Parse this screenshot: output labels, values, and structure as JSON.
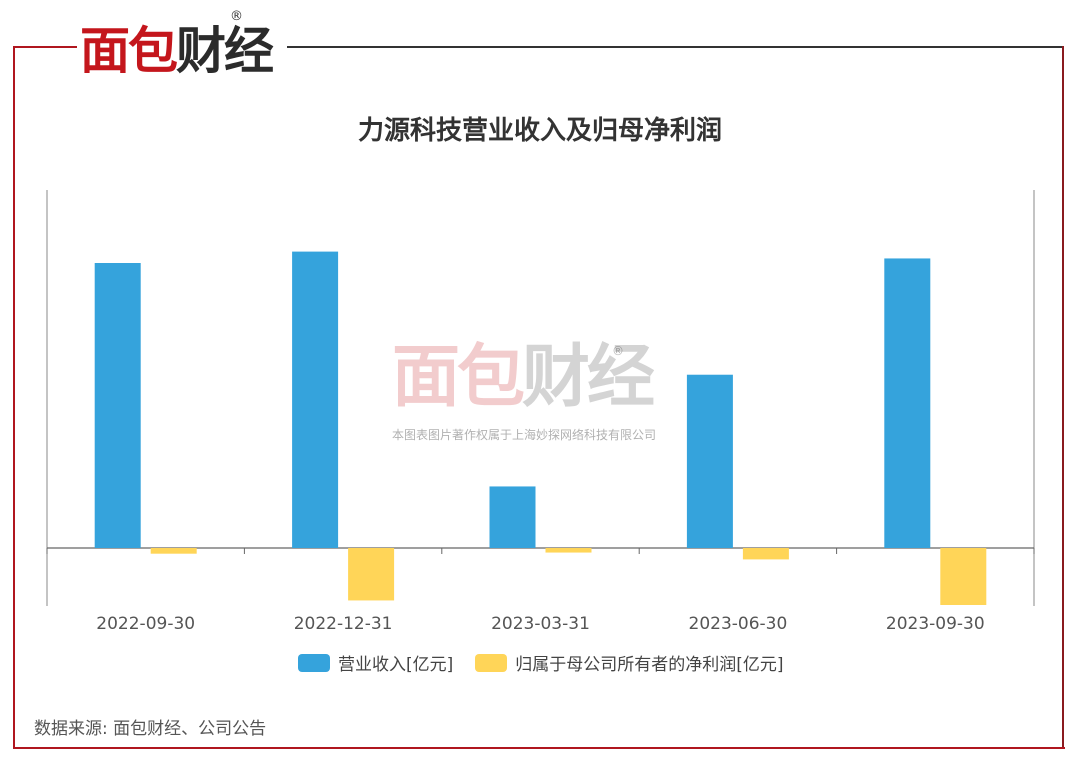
{
  "logo": {
    "part1": "面包",
    "part2": "财经",
    "registered": "®"
  },
  "watermark": {
    "logo1": "面包",
    "logo2": "财经",
    "registered": "®",
    "text": "本图表图片著作权属于上海妙探网络科技有限公司"
  },
  "source": "数据来源: 面包财经、公司公告",
  "chart_data": {
    "type": "bar",
    "title": "力源科技营业收入及归母净利润",
    "categories": [
      "2022-09-30",
      "2022-12-31",
      "2023-03-31",
      "2023-06-30",
      "2023-09-30"
    ],
    "series": [
      {
        "name": "营业收入[亿元]",
        "values": [
          1.25,
          1.3,
          0.27,
          0.76,
          1.27
        ],
        "color": "#35a3dc"
      },
      {
        "name": "归属于母公司所有者的净利润[亿元]",
        "values": [
          -0.025,
          -0.23,
          -0.02,
          -0.05,
          -0.25
        ],
        "color": "#ffd558"
      }
    ],
    "ylim": [
      -0.25,
      1.57
    ],
    "grid": false,
    "legend": "bottom"
  }
}
